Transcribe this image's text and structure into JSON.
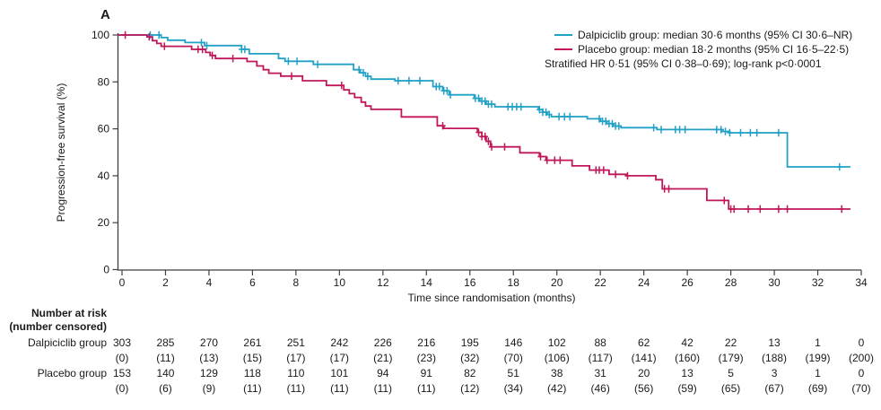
{
  "panel_label": "A",
  "colors": {
    "dalpiciclib": "#21A1C6",
    "placebo": "#C0175B",
    "axis": "#3f3f3f",
    "text": "#1a1a1a"
  },
  "legend": {
    "items": [
      {
        "name": "dalpiciclib",
        "label": "Dalpiciclib group: median 30·6 months (95% CI 30·6–NR)",
        "color": "#21A1C6"
      },
      {
        "name": "placebo",
        "label": "Placebo group: median 18·2 months (95% CI 16·5–22·5)",
        "color": "#C0175B"
      }
    ],
    "note": "Stratified HR 0·51 (95% CI 0·38–0·69); log-rank p<0·0001"
  },
  "chart_data": {
    "type": "line",
    "subtype": "kaplan-meier-step",
    "title": "",
    "xlabel": "Time since randomisation (months)",
    "ylabel": "Progression-free survival (%)",
    "xlim": [
      0,
      34
    ],
    "ylim": [
      0,
      100
    ],
    "xticks": [
      0,
      2,
      4,
      6,
      8,
      10,
      12,
      14,
      16,
      18,
      20,
      22,
      24,
      26,
      28,
      30,
      32,
      34
    ],
    "yticks": [
      0,
      20,
      40,
      60,
      80,
      100
    ],
    "grid": false,
    "legend_position": "top-right",
    "series": [
      {
        "name": "Dalpiciclib group",
        "color": "#21A1C6",
        "end_time": 33.5,
        "steps": [
          [
            0,
            100
          ],
          [
            1.8,
            98.9
          ],
          [
            2.1,
            97.8
          ],
          [
            2.9,
            96.8
          ],
          [
            3.8,
            95.5
          ],
          [
            5.5,
            93.9
          ],
          [
            5.85,
            92.0
          ],
          [
            7.2,
            90.0
          ],
          [
            7.5,
            88.8
          ],
          [
            8.8,
            87.5
          ],
          [
            10.65,
            85.2
          ],
          [
            10.95,
            83.9
          ],
          [
            11.2,
            82.4
          ],
          [
            11.45,
            81.2
          ],
          [
            12.55,
            80.5
          ],
          [
            14.3,
            78.0
          ],
          [
            14.75,
            76.2
          ],
          [
            15.05,
            74.5
          ],
          [
            16.2,
            73.0
          ],
          [
            16.45,
            71.8
          ],
          [
            16.75,
            70.5
          ],
          [
            17.15,
            69.4
          ],
          [
            19.15,
            68.2
          ],
          [
            19.35,
            67.1
          ],
          [
            19.55,
            66.1
          ],
          [
            19.75,
            65.2
          ],
          [
            21.4,
            64.3
          ],
          [
            22.0,
            63.2
          ],
          [
            22.3,
            62.2
          ],
          [
            22.6,
            61.2
          ],
          [
            22.95,
            60.5
          ],
          [
            24.6,
            59.7
          ],
          [
            27.6,
            58.9
          ],
          [
            27.95,
            58.3
          ],
          [
            30.6,
            43.8
          ]
        ],
        "censor_times": [
          1.3,
          1.7,
          3.65,
          3.9,
          5.5,
          5.65,
          7.65,
          8.05,
          9.0,
          10.9,
          11.1,
          11.3,
          12.7,
          13.2,
          13.7,
          14.45,
          14.6,
          14.8,
          14.95,
          15.1,
          16.25,
          16.4,
          16.55,
          16.7,
          16.85,
          17.0,
          17.75,
          17.95,
          18.15,
          18.35,
          19.2,
          19.35,
          19.5,
          19.65,
          20.1,
          20.35,
          20.6,
          21.95,
          22.1,
          22.25,
          22.4,
          22.55,
          22.7,
          22.85,
          24.45,
          24.8,
          25.45,
          25.65,
          25.9,
          27.35,
          27.55,
          27.75,
          27.95,
          28.45,
          28.9,
          29.2,
          30.2,
          33.0
        ]
      },
      {
        "name": "Placebo group",
        "color": "#C0175B",
        "end_time": 33.5,
        "steps": [
          [
            0,
            100
          ],
          [
            1.15,
            99.2
          ],
          [
            1.4,
            97.6
          ],
          [
            1.6,
            96.4
          ],
          [
            1.8,
            95.2
          ],
          [
            3.2,
            93.9
          ],
          [
            3.85,
            92.6
          ],
          [
            4.05,
            91.3
          ],
          [
            4.3,
            90.0
          ],
          [
            5.75,
            88.7
          ],
          [
            6.2,
            86.8
          ],
          [
            6.5,
            85.2
          ],
          [
            6.75,
            83.7
          ],
          [
            7.3,
            82.5
          ],
          [
            8.3,
            80.5
          ],
          [
            9.4,
            78.5
          ],
          [
            10.2,
            76.6
          ],
          [
            10.45,
            75.0
          ],
          [
            10.7,
            73.4
          ],
          [
            11.0,
            71.4
          ],
          [
            11.2,
            69.7
          ],
          [
            11.45,
            68.3
          ],
          [
            12.85,
            65.1
          ],
          [
            14.5,
            61.3
          ],
          [
            14.8,
            60.2
          ],
          [
            16.35,
            58.5
          ],
          [
            16.55,
            56.7
          ],
          [
            16.75,
            54.7
          ],
          [
            16.95,
            52.3
          ],
          [
            18.3,
            49.8
          ],
          [
            19.2,
            48.2
          ],
          [
            19.5,
            46.6
          ],
          [
            20.7,
            44.2
          ],
          [
            21.5,
            42.4
          ],
          [
            22.4,
            40.6
          ],
          [
            23.2,
            40.0
          ],
          [
            24.55,
            38.3
          ],
          [
            24.85,
            34.4
          ],
          [
            26.9,
            29.5
          ],
          [
            27.9,
            25.8
          ]
        ],
        "censor_times": [
          0.15,
          1.25,
          1.95,
          3.5,
          3.7,
          4.15,
          5.1,
          7.8,
          10.1,
          14.75,
          16.4,
          16.55,
          16.7,
          16.85,
          17.0,
          17.6,
          19.25,
          19.55,
          19.9,
          20.15,
          21.8,
          21.95,
          22.15,
          22.7,
          23.25,
          24.95,
          25.15,
          27.7,
          28.0,
          28.15,
          28.8,
          29.35,
          30.2,
          30.6,
          33.1
        ]
      }
    ]
  },
  "risk_table": {
    "header_line1": "Number at risk",
    "header_line2": "(number censored)",
    "rows": [
      {
        "label": "Dalpiciclib group",
        "at_risk": [
          "303",
          "285",
          "270",
          "261",
          "251",
          "242",
          "226",
          "216",
          "195",
          "146",
          "102",
          "88",
          "62",
          "42",
          "22",
          "13",
          "1",
          "0"
        ],
        "censored": [
          "(0)",
          "(11)",
          "(13)",
          "(15)",
          "(17)",
          "(17)",
          "(21)",
          "(23)",
          "(32)",
          "(70)",
          "(106)",
          "(117)",
          "(141)",
          "(160)",
          "(179)",
          "(188)",
          "(199)",
          "(200)"
        ]
      },
      {
        "label": "Placebo group",
        "at_risk": [
          "153",
          "140",
          "129",
          "118",
          "110",
          "101",
          "94",
          "91",
          "82",
          "51",
          "38",
          "31",
          "20",
          "13",
          "5",
          "3",
          "1",
          "0"
        ],
        "censored": [
          "(0)",
          "(6)",
          "(9)",
          "(11)",
          "(11)",
          "(11)",
          "(11)",
          "(11)",
          "(12)",
          "(34)",
          "(42)",
          "(46)",
          "(56)",
          "(59)",
          "(65)",
          "(67)",
          "(69)",
          "(70)"
        ]
      }
    ]
  }
}
